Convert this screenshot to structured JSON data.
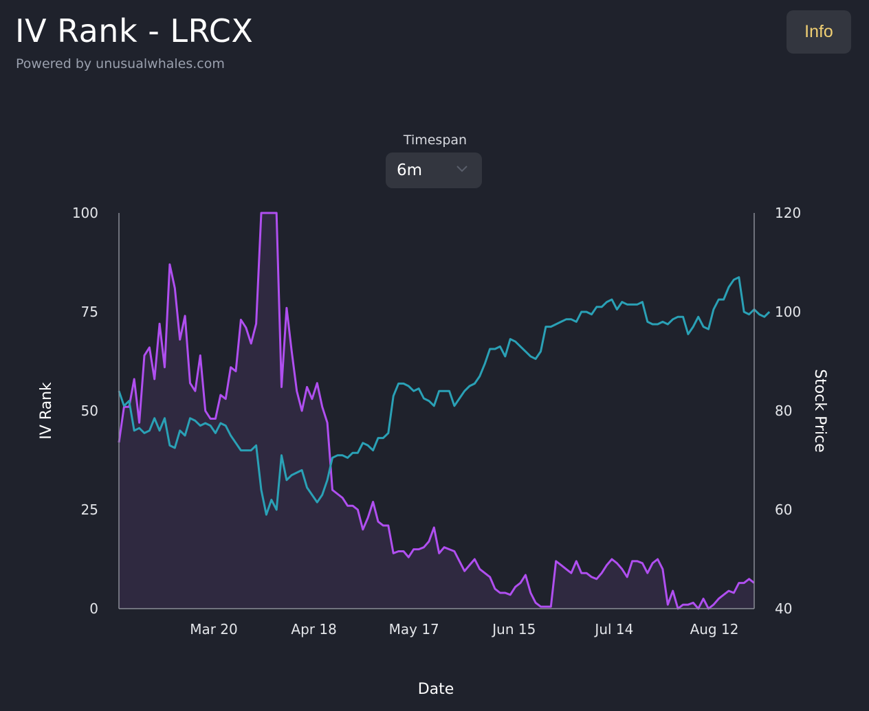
{
  "header": {
    "title": "IV Rank - LRCX",
    "subtitle": "Powered by unusualwhales.com",
    "info_label": "Info"
  },
  "timespan": {
    "label": "Timespan",
    "value": "6m",
    "chevron_icon": "chevron-down-icon"
  },
  "colors": {
    "background": "#1f222c",
    "iv_line": "#b04ff0",
    "iv_fill": "#2f2940",
    "price_line": "#2aa1b6",
    "axis": "#8a8d96",
    "info_text": "#f0cf73"
  },
  "chart_data": {
    "type": "line",
    "xlabel": "Date",
    "ylabel_left": "IV Rank",
    "ylabel_right": "Stock Price",
    "x_ticks": [
      "Mar 20",
      "Apr 18",
      "May 17",
      "Jun 15",
      "Jul 14",
      "Aug 12"
    ],
    "y_left_ticks": [
      0,
      25,
      50,
      75,
      100
    ],
    "y_right_ticks": [
      40,
      60,
      80,
      100,
      120
    ],
    "ylim_left": [
      0,
      100
    ],
    "ylim_right": [
      40,
      120
    ],
    "series": [
      {
        "axis": "left",
        "fill": true,
        "values": [
          42,
          51,
          51,
          58,
          47,
          64,
          66,
          58,
          72,
          61,
          87,
          81,
          68,
          74,
          57,
          55,
          64,
          50,
          48,
          48,
          54,
          53,
          61,
          60,
          73,
          71,
          67,
          72,
          100,
          100,
          100,
          100,
          56,
          76,
          65,
          55,
          50,
          56,
          53,
          57,
          51,
          47,
          30,
          29,
          28,
          26,
          26,
          25,
          20,
          23,
          27,
          22,
          21,
          21,
          14,
          14.5,
          14.5,
          13,
          15,
          15,
          15.5,
          17,
          20.5,
          14,
          15.5,
          15,
          14.5,
          12,
          9.5,
          11,
          12.5,
          10,
          9,
          8,
          5,
          4,
          4,
          3.5,
          5.5,
          6.5,
          8.5,
          4,
          1.5,
          0.5,
          0.5,
          0.5,
          12,
          11,
          10,
          9,
          12,
          9,
          9,
          8,
          7.5,
          9,
          11,
          12.5,
          11.5,
          10,
          8,
          12,
          12,
          11.5,
          9,
          11.5,
          12.5,
          10,
          1,
          4.5,
          0,
          1,
          1,
          1.5,
          0,
          2.5,
          0,
          1,
          2.5,
          3.5,
          4.5,
          4,
          6.5,
          6.5,
          7.5,
          6.5
        ]
      },
      {
        "axis": "right",
        "fill": false,
        "values": [
          84,
          81,
          82,
          76,
          76.5,
          75.5,
          76,
          78.5,
          76,
          78.5,
          73,
          72.5,
          76,
          75,
          78.5,
          78,
          77,
          77.5,
          77,
          75.5,
          77.5,
          77,
          75,
          73.5,
          72,
          72,
          72,
          73,
          64,
          59,
          62,
          60,
          71,
          66,
          67,
          67.5,
          68,
          64.5,
          63,
          61.5,
          63,
          66,
          70.5,
          71,
          71,
          70.5,
          71.5,
          71.5,
          73.5,
          73,
          72,
          74.5,
          74.5,
          75.5,
          83,
          85.5,
          85.5,
          85,
          84,
          84.5,
          82.5,
          82,
          81,
          84,
          84,
          84,
          81,
          82.5,
          84,
          85,
          85.5,
          87,
          89.5,
          92.5,
          92.5,
          93,
          91,
          94.5,
          94,
          93,
          92,
          91,
          90.5,
          92,
          97,
          97,
          97.5,
          98,
          98.5,
          98.5,
          98,
          100,
          100,
          99.5,
          101,
          101,
          102,
          102.5,
          100.5,
          102,
          101.5,
          101.5,
          101.5,
          102,
          98,
          97.5,
          97.5,
          98,
          97.5,
          98.5,
          99,
          99,
          95.5,
          97,
          99,
          97,
          96.5,
          100.5,
          102.5,
          102.5,
          105,
          106.5,
          107,
          100,
          99.5,
          100.5,
          99.5,
          99,
          100
        ]
      }
    ]
  }
}
